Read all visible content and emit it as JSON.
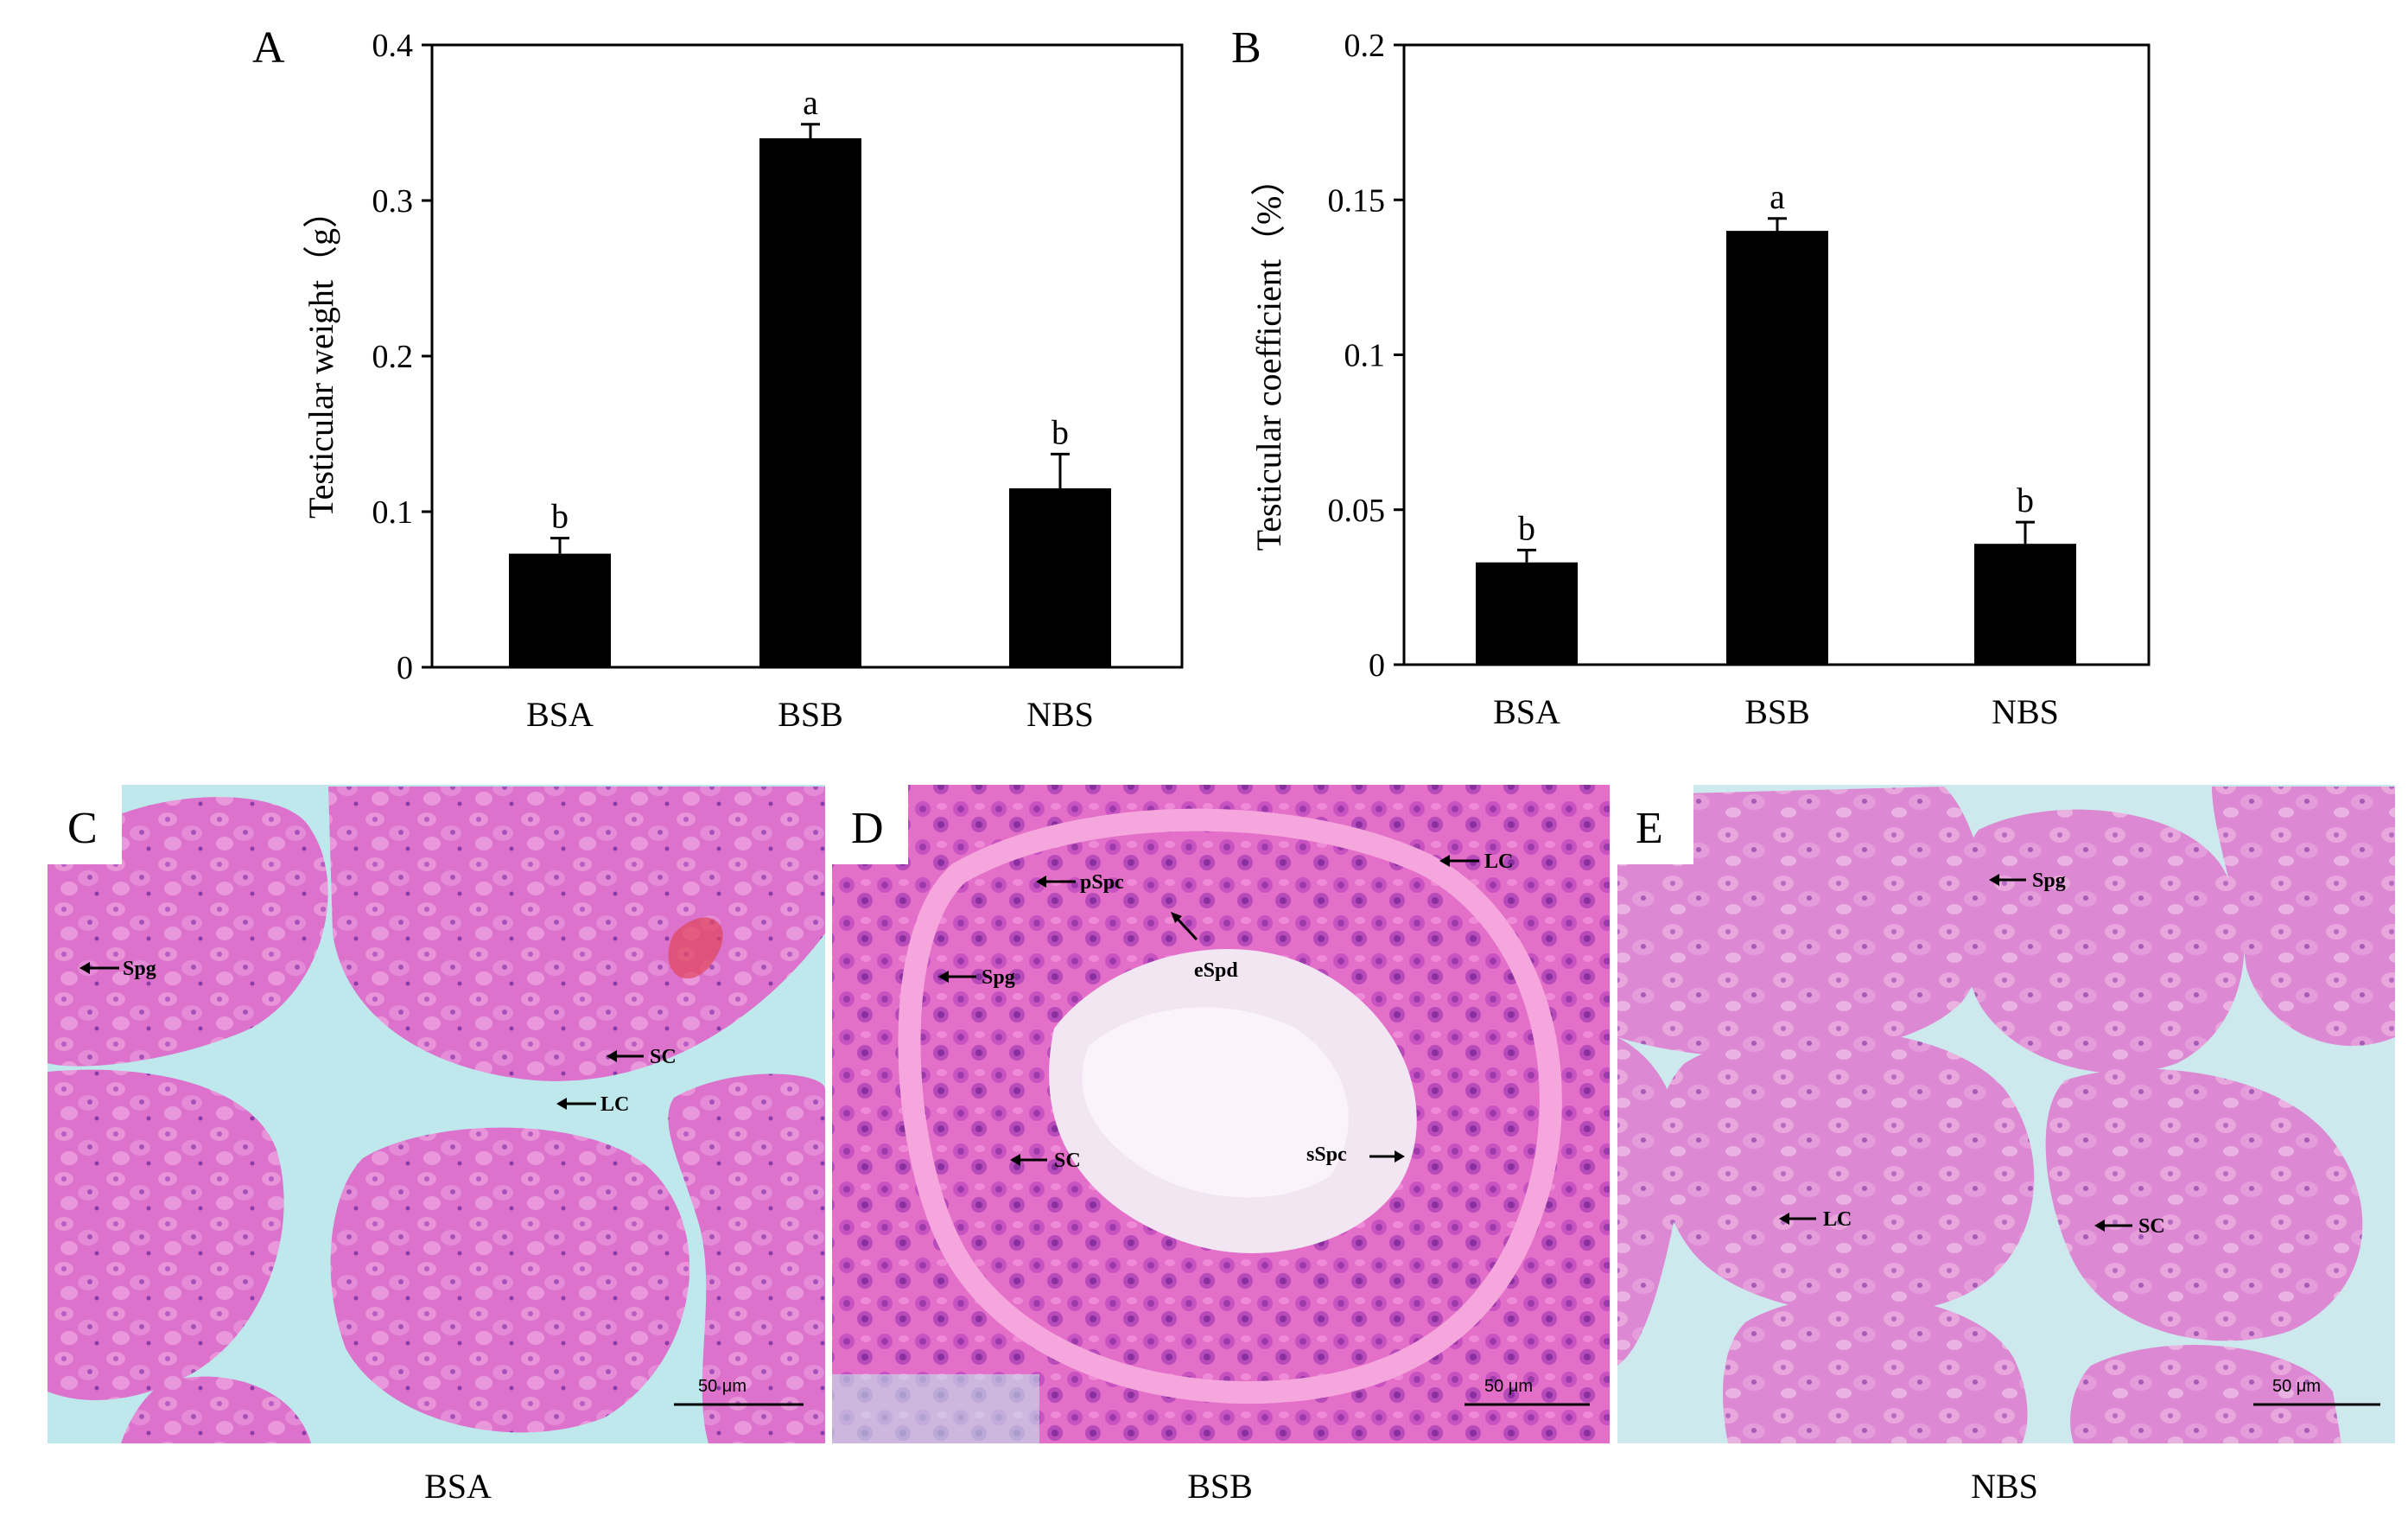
{
  "chart_data": [
    {
      "type": "bar",
      "panel": "A",
      "categories": [
        "BSA",
        "BSB",
        "NBS"
      ],
      "values": [
        0.073,
        0.34,
        0.115
      ],
      "errors": [
        0.01,
        0.009,
        0.022
      ],
      "significance": [
        "b",
        "a",
        "b"
      ],
      "ylabel": "Testicular weight（g）",
      "ylim": [
        0,
        0.4
      ],
      "yticks": [
        0,
        0.1,
        0.2,
        0.3,
        0.4
      ],
      "ytick_labels": [
        "0",
        "0.1",
        "0.2",
        "0.3",
        "0.4"
      ],
      "bar_color": "#000000",
      "grid": false
    },
    {
      "type": "bar",
      "panel": "B",
      "categories": [
        "BSA",
        "BSB",
        "NBS"
      ],
      "values": [
        0.033,
        0.14,
        0.039
      ],
      "errors": [
        0.004,
        0.004,
        0.007
      ],
      "significance": [
        "b",
        "a",
        "b"
      ],
      "ylabel": "Testicular coefficient（%）",
      "ylim": [
        0,
        0.2
      ],
      "yticks": [
        0,
        0.05,
        0.1,
        0.15,
        0.2
      ],
      "ytick_labels": [
        "0",
        "0.05",
        "0.1",
        "0.15",
        "0.2"
      ],
      "bar_color": "#000000",
      "grid": false
    }
  ],
  "micrographs": [
    {
      "panel": "C",
      "caption": "BSA",
      "scale_label": "50 μm",
      "labels": [
        "Spg",
        "SC",
        "LC"
      ]
    },
    {
      "panel": "D",
      "caption": "BSB",
      "scale_label": "50 μm",
      "labels": [
        "pSpc",
        "LC",
        "eSpd",
        "Spg",
        "SC",
        "sSpc"
      ]
    },
    {
      "panel": "E",
      "caption": "NBS",
      "scale_label": "50 μm",
      "labels": [
        "Spg",
        "LC",
        "SC"
      ]
    }
  ],
  "colors": {
    "stain_background": "#d974cf",
    "lumen": "#bfe8ec",
    "nuclei": "#8a3aa8"
  }
}
